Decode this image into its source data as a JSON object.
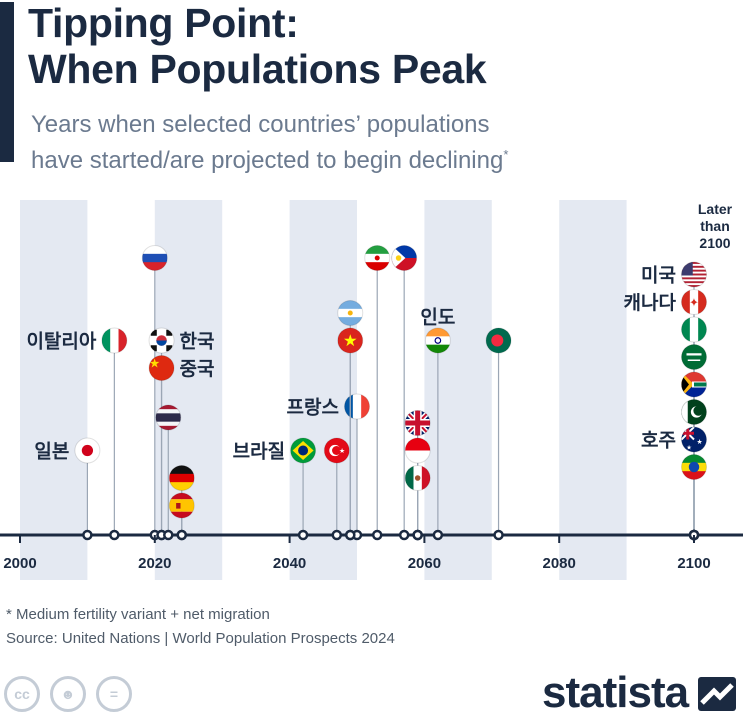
{
  "title": "Tipping Point:\nWhen Populations Peak",
  "subtitle_text": "Years when selected countries’ populations\nhave started/are projected to begin declining",
  "subtitle_mark": "*",
  "footnote": "* Medium fertility variant + net migration",
  "source": "Source: United Nations | World Population Prospects 2024",
  "brand": "statista",
  "cc_icons": [
    "cc-icon",
    "person-icon",
    "equals-icon"
  ],
  "colors": {
    "accent": "#1b2a41",
    "band": "#e4e9f2",
    "axis": "#1b2a41",
    "stem": "#9ba6b5"
  },
  "chart_data": {
    "type": "timeline",
    "xlim": [
      2000,
      2102
    ],
    "x_ticks": [
      2000,
      2020,
      2040,
      2060,
      2080,
      2100
    ],
    "bands": [
      [
        2000,
        2010
      ],
      [
        2020,
        2030
      ],
      [
        2040,
        2050
      ],
      [
        2060,
        2070
      ],
      [
        2080,
        2090
      ]
    ],
    "later_label": "Later\nthan\n2100",
    "countries": [
      {
        "label": "일본",
        "flag": "jp",
        "year": 2010,
        "row": 8
      },
      {
        "label": "이탈리아",
        "flag": "it",
        "year": 2014,
        "row": 4
      },
      {
        "label": "",
        "flag": "ru",
        "year": 2020,
        "row": 1
      },
      {
        "label": "한국",
        "flag": "kr",
        "year": 2021,
        "row": 4
      },
      {
        "label": "중국",
        "flag": "cn",
        "year": 2021,
        "row": 5
      },
      {
        "label": "",
        "flag": "th",
        "year": 2022,
        "row": 6.8
      },
      {
        "label": "",
        "flag": "de",
        "year": 2024,
        "row": 9
      },
      {
        "label": "",
        "flag": "es",
        "year": 2024,
        "row": 10
      },
      {
        "label": "브라질",
        "flag": "br",
        "year": 2042,
        "row": 8
      },
      {
        "label": "",
        "flag": "tr",
        "year": 2047,
        "row": 8
      },
      {
        "label": "프랑스",
        "flag": "fr",
        "year": 2050,
        "row": 6.4
      },
      {
        "label": "",
        "flag": "ar",
        "year": 2049,
        "row": 3
      },
      {
        "label": "",
        "flag": "vn",
        "year": 2049,
        "row": 4
      },
      {
        "label": "",
        "flag": "ir",
        "year": 2053,
        "row": 1
      },
      {
        "label": "",
        "flag": "ph",
        "year": 2057,
        "row": 1
      },
      {
        "label": "",
        "flag": "gb",
        "year": 2059,
        "row": 7
      },
      {
        "label": "",
        "flag": "id",
        "year": 2059,
        "row": 8
      },
      {
        "label": "",
        "flag": "mx",
        "year": 2059,
        "row": 9
      },
      {
        "label": "인도",
        "flag": "in",
        "year": 2062,
        "row": 4
      },
      {
        "label": "",
        "flag": "bd",
        "year": 2071,
        "row": 4
      },
      {
        "label": "미국",
        "flag": "us",
        "year": "later",
        "row": 1.6
      },
      {
        "label": "캐나다",
        "flag": "ca",
        "year": "later",
        "row": 2.6
      },
      {
        "label": "",
        "flag": "ng",
        "year": "later",
        "row": 3.6
      },
      {
        "label": "",
        "flag": "sa",
        "year": "later",
        "row": 4.6
      },
      {
        "label": "",
        "flag": "za",
        "year": "later",
        "row": 5.6
      },
      {
        "label": "",
        "flag": "pk",
        "year": "later",
        "row": 6.6
      },
      {
        "label": "호주",
        "flag": "au",
        "year": "later",
        "row": 7.6
      },
      {
        "label": "",
        "flag": "et",
        "year": "later",
        "row": 8.6
      }
    ]
  }
}
